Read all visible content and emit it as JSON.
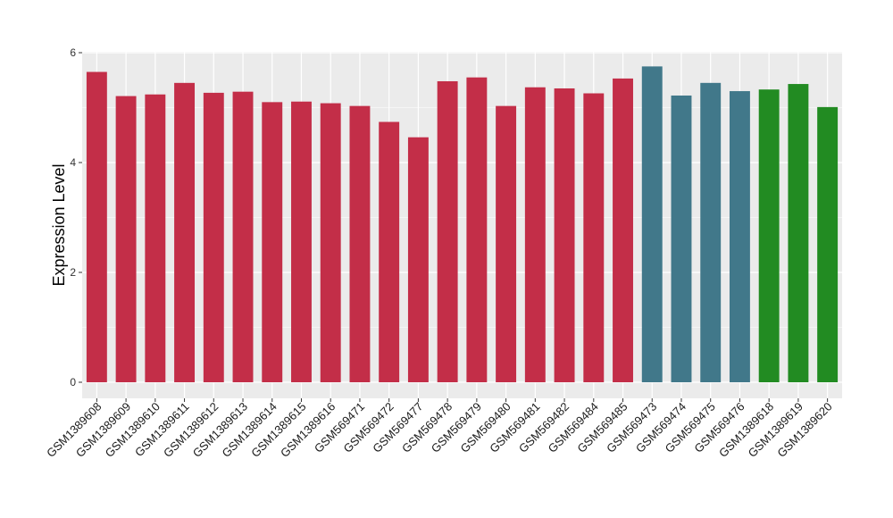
{
  "chart_data": {
    "type": "bar",
    "title": "",
    "xlabel": "",
    "ylabel": "Expression Level",
    "ylim": [
      0,
      6
    ],
    "yticks": [
      0,
      2,
      4,
      6
    ],
    "grid": true,
    "legend": "none",
    "colors": {
      "group1": "#C32E48",
      "group2": "#41788A",
      "group3": "#228B22",
      "panel": "#EBEBEB",
      "gridline": "#FFFFFF"
    },
    "categories": [
      "GSM1389608",
      "GSM1389609",
      "GSM1389610",
      "GSM1389611",
      "GSM1389612",
      "GSM1389613",
      "GSM1389614",
      "GSM1389615",
      "GSM1389616",
      "GSM569471",
      "GSM569472",
      "GSM569477",
      "GSM569478",
      "GSM569479",
      "GSM569480",
      "GSM569481",
      "GSM569482",
      "GSM569484",
      "GSM569485",
      "GSM569473",
      "GSM569474",
      "GSM569475",
      "GSM569476",
      "GSM1389618",
      "GSM1389619",
      "GSM1389620"
    ],
    "values": [
      5.65,
      5.21,
      5.24,
      5.45,
      5.27,
      5.29,
      5.1,
      5.11,
      5.08,
      5.03,
      4.74,
      4.46,
      5.48,
      5.55,
      5.03,
      5.37,
      5.35,
      5.26,
      5.53,
      5.75,
      5.22,
      5.45,
      5.3,
      5.33,
      5.43,
      5.01
    ],
    "groups": [
      "group1",
      "group1",
      "group1",
      "group1",
      "group1",
      "group1",
      "group1",
      "group1",
      "group1",
      "group1",
      "group1",
      "group1",
      "group1",
      "group1",
      "group1",
      "group1",
      "group1",
      "group1",
      "group1",
      "group2",
      "group2",
      "group2",
      "group2",
      "group3",
      "group3",
      "group3"
    ]
  }
}
